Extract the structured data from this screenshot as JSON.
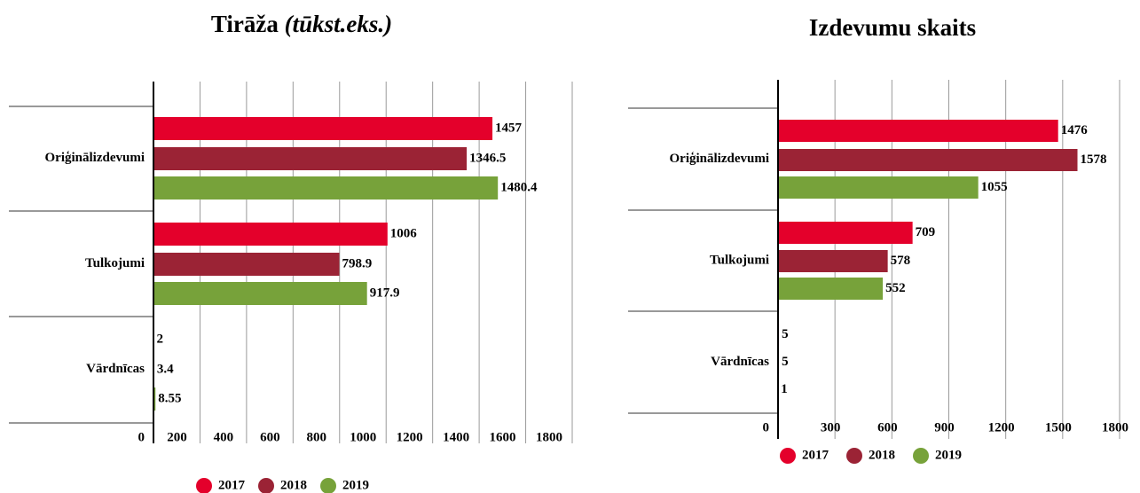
{
  "chart_data": [
    {
      "type": "bar",
      "orientation": "horizontal",
      "title": "Tirāža",
      "title_italic": "(tūkst.eks.)",
      "categories": [
        "Oriģinālizdevumi",
        "Tulkojumi",
        "Vārdnīcas"
      ],
      "series": [
        {
          "name": "2017",
          "color": "#e4002b",
          "values": [
            1457,
            1006,
            2
          ]
        },
        {
          "name": "2018",
          "color": "#9b2335",
          "values": [
            1346.5,
            798.9,
            3.4
          ]
        },
        {
          "name": "2019",
          "color": "#77a23a",
          "values": [
            1480.4,
            917.9,
            8.55
          ]
        }
      ],
      "xlim": [
        0,
        1800
      ],
      "xticks": [
        0,
        200,
        400,
        600,
        800,
        1000,
        1200,
        1400,
        1600,
        1800
      ],
      "grid": true,
      "legend": "bottom"
    },
    {
      "type": "bar",
      "orientation": "horizontal",
      "title": "Izdevumu skaits",
      "categories": [
        "Oriģinālizdevumi",
        "Tulkojumi",
        "Vārdnīcas"
      ],
      "series": [
        {
          "name": "2017",
          "color": "#e4002b",
          "values": [
            1476,
            709,
            5
          ]
        },
        {
          "name": "2018",
          "color": "#9b2335",
          "values": [
            1578,
            578,
            5
          ]
        },
        {
          "name": "2019",
          "color": "#77a23a",
          "values": [
            1055,
            552,
            1
          ]
        }
      ],
      "xlim": [
        0,
        1800
      ],
      "xticks": [
        0,
        300,
        600,
        900,
        1200,
        1500,
        1800
      ],
      "grid": true,
      "legend": "bottom"
    }
  ]
}
